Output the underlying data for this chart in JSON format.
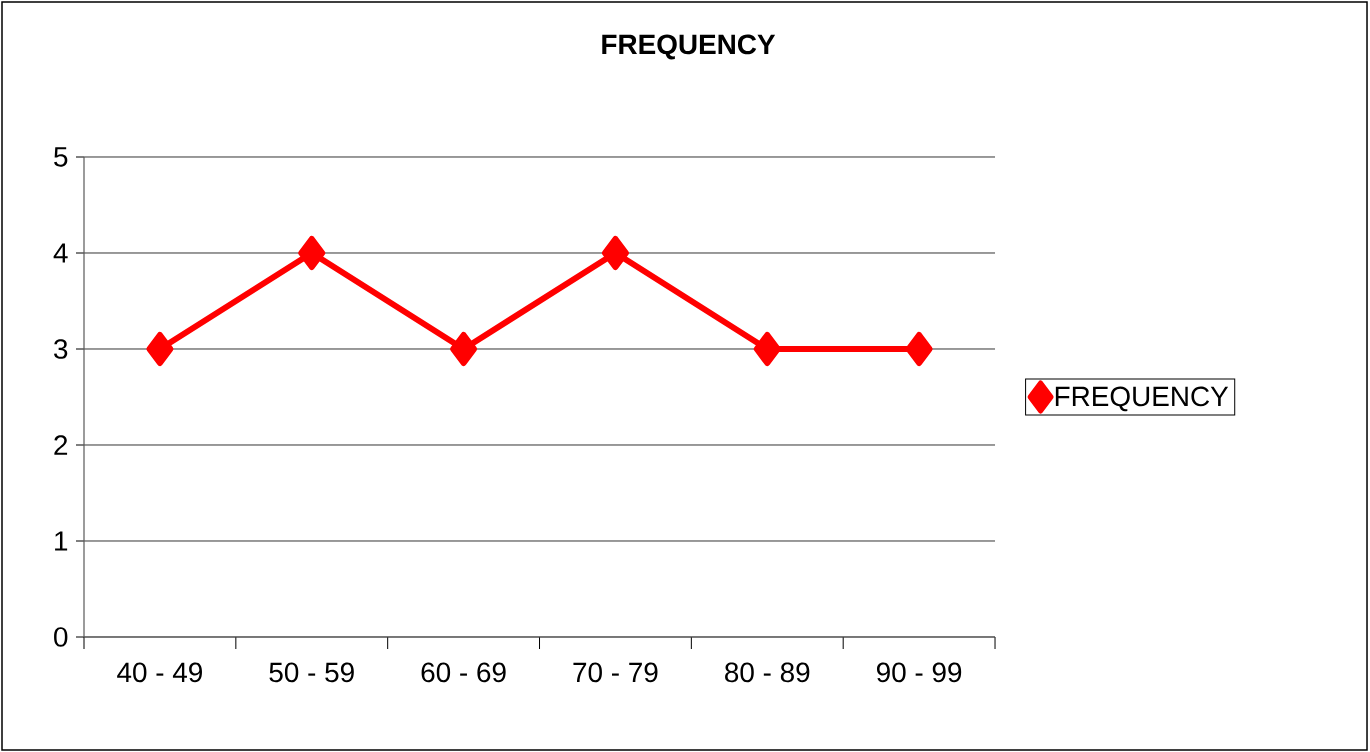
{
  "chart_data": {
    "type": "line",
    "title": "FREQUENCY",
    "categories": [
      "40 - 49",
      "50 - 59",
      "60 - 69",
      "70 - 79",
      "80 - 89",
      "90 - 99"
    ],
    "series": [
      {
        "name": "FREQUENCY",
        "color": "#ff0000",
        "values": [
          3,
          4,
          3,
          4,
          3,
          3
        ]
      }
    ],
    "ylim": [
      0,
      5
    ],
    "yticks": [
      0,
      1,
      2,
      3,
      4,
      5
    ],
    "grid": "y",
    "legend": "right",
    "marker": "diamond",
    "line_style": "solid"
  }
}
